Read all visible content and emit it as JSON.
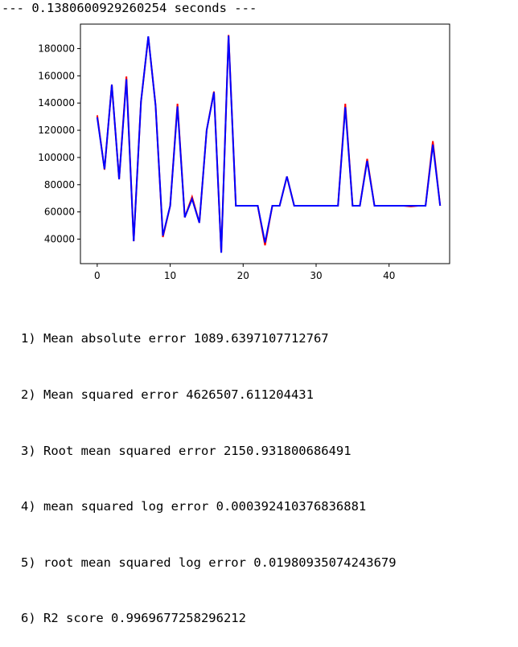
{
  "output": {
    "timing_text": "--- 0.1380600929260254 seconds ---"
  },
  "chart_data": {
    "type": "line",
    "title": "",
    "xlabel": "",
    "ylabel": "",
    "xlim": [
      -2.3,
      48.3
    ],
    "ylim": [
      22000,
      198000
    ],
    "x_ticks": [
      0,
      10,
      20,
      30,
      40
    ],
    "y_ticks": [
      40000,
      60000,
      80000,
      100000,
      120000,
      140000,
      160000,
      180000
    ],
    "grid": false,
    "legend": "none",
    "series": [
      {
        "color": "#ff0000",
        "values": [
          131000,
          91000,
          153500,
          84000,
          159500,
          38500,
          141000,
          188500,
          138500,
          41500,
          64500,
          139500,
          56000,
          71000,
          52000,
          120000,
          148500,
          30000,
          190000,
          64500,
          64500,
          64500,
          64500,
          35500,
          64500,
          64500,
          86000,
          64500,
          64500,
          64500,
          64500,
          64500,
          64500,
          64500,
          139500,
          64500,
          64500,
          99000,
          64500,
          64500,
          64500,
          64500,
          64500,
          64000,
          64500,
          64500,
          112000,
          64500
        ]
      },
      {
        "color": "#0000ff",
        "values": [
          129500,
          91500,
          153500,
          84000,
          157500,
          38500,
          141000,
          189000,
          138000,
          42500,
          64500,
          137500,
          56000,
          69500,
          52000,
          120000,
          148000,
          30000,
          189500,
          64500,
          64500,
          64500,
          64500,
          37500,
          64500,
          64500,
          86000,
          64500,
          64500,
          64500,
          64500,
          64500,
          64500,
          64500,
          137000,
          64500,
          64500,
          97500,
          64500,
          64500,
          64500,
          64500,
          64500,
          64500,
          64500,
          64500,
          109500,
          64500
        ]
      }
    ]
  },
  "metrics": [
    "1) Mean absolute error 1089.6397107712767",
    "2) Mean squared error 4626507.611204431",
    "3) Root mean squared error 2150.931800686491",
    "4) mean squared log error 0.000392410376836881",
    "5) root mean squared log error 0.01980935074243679",
    "6) R2 score 0.9969677258296212"
  ]
}
